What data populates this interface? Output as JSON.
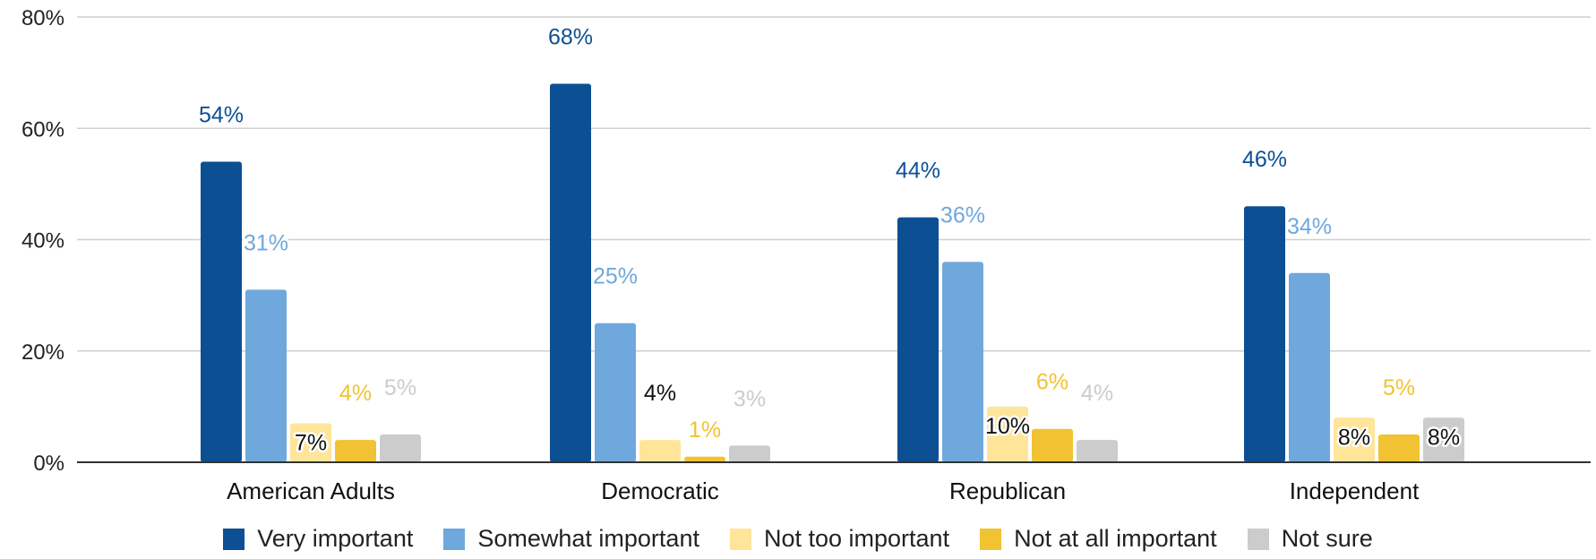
{
  "chart_data": {
    "type": "bar",
    "categories": [
      "American Adults",
      "Democratic",
      "Republican",
      "Independent"
    ],
    "ylim": [
      0,
      80
    ],
    "yticks": [
      "0%",
      "20%",
      "40%",
      "60%",
      "80%"
    ],
    "ytick_values": [
      0,
      20,
      40,
      60,
      80
    ],
    "grid": true,
    "legend_position": "bottom",
    "series": [
      {
        "name": "Very important",
        "color": "#0d4f93",
        "values": [
          54,
          68,
          44,
          46
        ],
        "labels": [
          "54%",
          "68%",
          "44%",
          "46%"
        ]
      },
      {
        "name": "Somewhat important",
        "color": "#6fa8dc",
        "values": [
          31,
          25,
          36,
          34
        ],
        "labels": [
          "31%",
          "25%",
          "36%",
          "34%"
        ]
      },
      {
        "name": "Not too important",
        "color": "#ffe599",
        "values": [
          7,
          4,
          10,
          8
        ],
        "labels": [
          "7%",
          "4%",
          "10%",
          "8%"
        ]
      },
      {
        "name": "Not at all important",
        "color": "#f1c232",
        "values": [
          4,
          1,
          6,
          5
        ],
        "labels": [
          "4%",
          "1%",
          "6%",
          "5%"
        ]
      },
      {
        "name": "Not sure",
        "color": "#cccccc",
        "values": [
          5,
          3,
          4,
          8
        ],
        "labels": [
          "5%",
          "3%",
          "4%",
          "8%"
        ]
      }
    ]
  }
}
